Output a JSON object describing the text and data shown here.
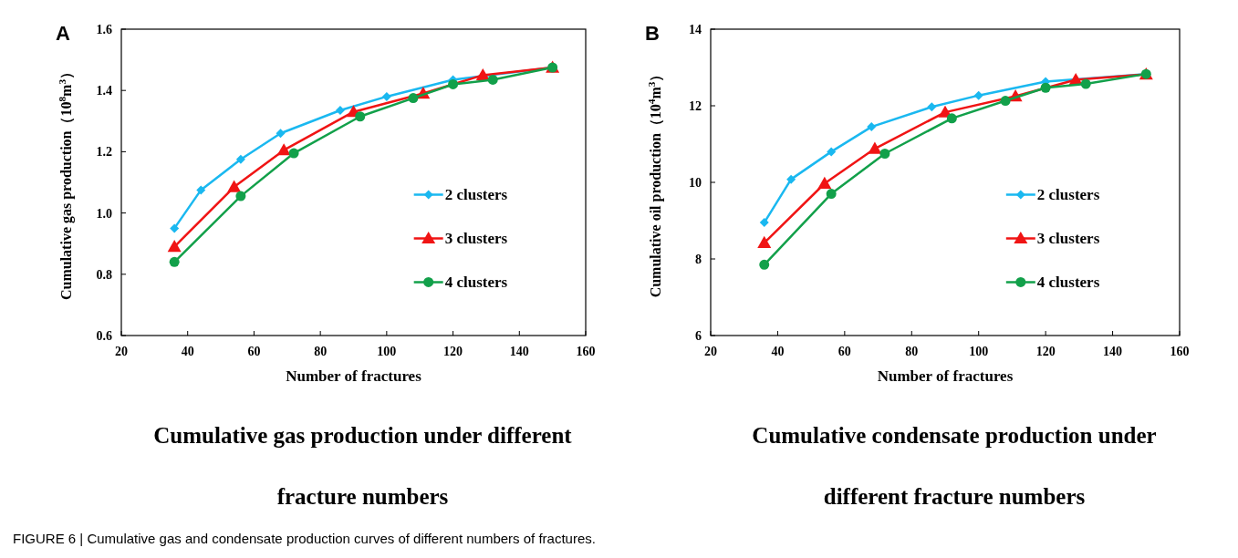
{
  "chart_data": [
    {
      "type": "line",
      "title": "A",
      "xlabel": "Number of fractures",
      "ylabel": "Cumulative gas production（10$^{8}$m$^{3}$）",
      "xlim": [
        20,
        160
      ],
      "xticks": [
        20,
        40,
        60,
        80,
        100,
        120,
        140,
        160
      ],
      "ylim": [
        0.6,
        1.6
      ],
      "yticks": [
        {
          "value": 0.6,
          "label": "0.6"
        },
        {
          "value": 0.8,
          "label": "0.8"
        },
        {
          "value": 1.0,
          "label": "1.0"
        },
        {
          "value": 1.2,
          "label": "1.2"
        },
        {
          "value": 1.4,
          "label": "1.4"
        },
        {
          "value": 1.6,
          "label": "1.6"
        }
      ],
      "grid": false,
      "legend": "right",
      "series": [
        {
          "name": "2 clusters",
          "color": "#1ab8f0",
          "marker": "diamond",
          "x": [
            36,
            44,
            56,
            68,
            86,
            100,
            120,
            150
          ],
          "values": [
            0.95,
            1.075,
            1.175,
            1.26,
            1.335,
            1.38,
            1.435,
            1.475
          ]
        },
        {
          "name": "3 clusters",
          "color": "#f01414",
          "marker": "triangle",
          "x": [
            36,
            54,
            69,
            90,
            111,
            129,
            150
          ],
          "values": [
            0.89,
            1.085,
            1.205,
            1.33,
            1.39,
            1.45,
            1.475
          ]
        },
        {
          "name": "4 clusters",
          "color": "#12a04a",
          "marker": "circle",
          "x": [
            36,
            56,
            72,
            92,
            108,
            120,
            132,
            150
          ],
          "values": [
            0.84,
            1.055,
            1.195,
            1.315,
            1.375,
            1.42,
            1.435,
            1.475
          ]
        }
      ],
      "annotations": [
        "Cumulative gas production under different\n\nfracture numbers",
        "FIGURE 6 | Cumulative gas and condensate production curves of different numbers of fractures."
      ]
    },
    {
      "type": "line",
      "title": "B",
      "xlabel": "Number of fractures",
      "ylabel": "Cumulative oil production（10$^{4}$m$^{3}$）",
      "xlim": [
        20,
        160
      ],
      "xticks": [
        20,
        40,
        60,
        80,
        100,
        120,
        140,
        160
      ],
      "ylim": [
        6,
        14
      ],
      "yticks": [
        6,
        8,
        10,
        12,
        14
      ],
      "grid": false,
      "legend": "right",
      "series": [
        {
          "name": "2 clusters",
          "color": "#1ab8f0",
          "marker": "diamond",
          "x": [
            36,
            44,
            56,
            68,
            86,
            100,
            120,
            150
          ],
          "values": [
            8.95,
            10.08,
            10.8,
            11.45,
            11.97,
            12.27,
            12.63,
            12.83
          ]
        },
        {
          "name": "3 clusters",
          "color": "#f01414",
          "marker": "triangle",
          "x": [
            36,
            54,
            69,
            90,
            111,
            129,
            150
          ],
          "values": [
            8.42,
            9.97,
            10.88,
            11.83,
            12.25,
            12.68,
            12.82
          ]
        },
        {
          "name": "4 clusters",
          "color": "#12a04a",
          "marker": "circle",
          "x": [
            36,
            56,
            72,
            92,
            108,
            120,
            132,
            150
          ],
          "values": [
            7.85,
            9.7,
            10.75,
            11.67,
            12.13,
            12.47,
            12.57,
            12.83
          ]
        }
      ],
      "annotations": [
        "Cumulative condensate production under\n\ndifferent fracture numbers"
      ]
    }
  ]
}
